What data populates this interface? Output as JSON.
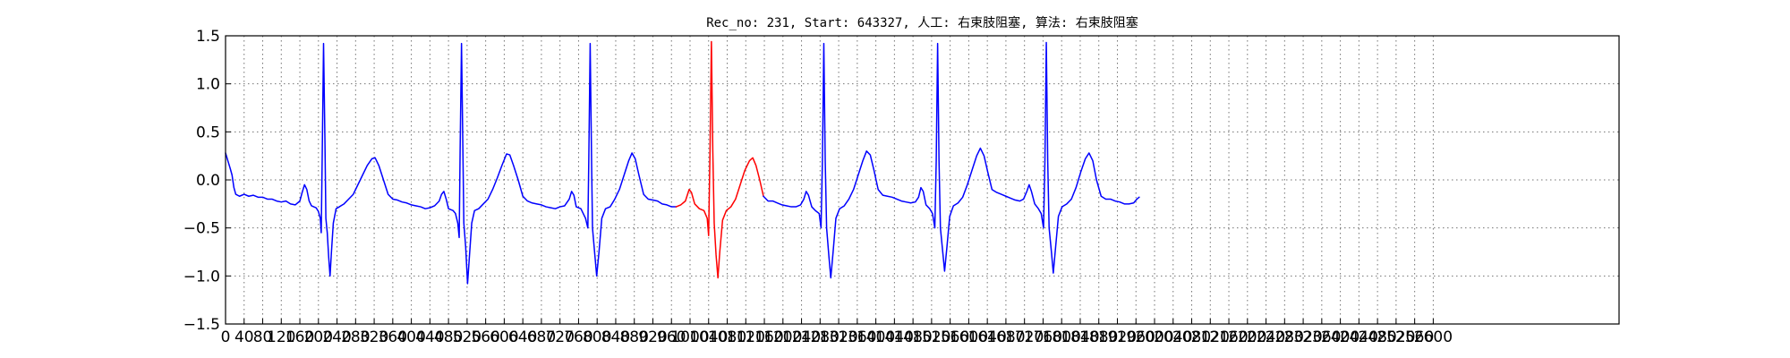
{
  "chart_data": {
    "type": "line",
    "title": "Rec_no: 231, Start: 643327, 人工: 右束肢阻塞, 算法: 右束肢阻塞",
    "xlabel": "",
    "ylabel": "",
    "xlim": [
      0,
      3000
    ],
    "ylim": [
      -1.5,
      1.5
    ],
    "grid": true,
    "x_ticks": [
      0,
      40,
      80,
      120,
      160,
      200,
      240,
      280,
      320,
      360,
      400,
      440,
      480,
      520,
      560,
      600,
      640,
      680,
      720,
      760,
      800,
      840,
      880,
      920,
      960,
      1000,
      1040,
      1080,
      1120,
      1160,
      1200,
      1240,
      1280,
      1320,
      1360,
      1400,
      1440,
      1480,
      1520,
      1560,
      1600,
      1640,
      1680,
      1720,
      1760,
      1800,
      1840,
      1880,
      1920,
      1960,
      2000,
      2040,
      2080,
      2120,
      2160,
      2200,
      2240,
      2280,
      2320,
      2360,
      2400,
      2440,
      2480,
      2520,
      2560,
      2600
    ],
    "x_tick_labels": [
      "0",
      "40",
      "80",
      "120",
      "160",
      "200",
      "240",
      "280",
      "320",
      "360",
      "400",
      "440",
      "480",
      "520",
      "560",
      "600",
      "640",
      "680",
      "720",
      "760",
      "800",
      "840",
      "880",
      "920",
      "960",
      "1000",
      "1040",
      "1080",
      "1120",
      "1160",
      "1200",
      "1240",
      "1280",
      "1320",
      "1360",
      "1400",
      "1440",
      "1480",
      "1520",
      "1560",
      "1600",
      "1640",
      "1680",
      "1720",
      "1760",
      "1800",
      "1840",
      "1880",
      "1920",
      "1960",
      "2000",
      "2040",
      "2080",
      "2120",
      "2160",
      "2200",
      "2240",
      "2280",
      "2320",
      "2360",
      "2400",
      "2440",
      "2480",
      "2520",
      "2560",
      "2600"
    ],
    "y_ticks": [
      1.5,
      1.0,
      0.5,
      0.0,
      -0.5,
      -1.0,
      -1.5
    ],
    "y_tick_labels": [
      "1.5",
      "1.0",
      "0.5",
      "0.0",
      "−0.5",
      "−1.0",
      "−1.5"
    ],
    "series": [
      {
        "color": "#0000ff",
        "points": [
          [
            0,
            0.28
          ],
          [
            5,
            0.2
          ],
          [
            10,
            0.12
          ],
          [
            14,
            0.05
          ],
          [
            18,
            -0.08
          ],
          [
            22,
            -0.15
          ],
          [
            30,
            -0.17
          ],
          [
            40,
            -0.15
          ],
          [
            50,
            -0.17
          ],
          [
            60,
            -0.16
          ],
          [
            70,
            -0.18
          ],
          [
            80,
            -0.18
          ],
          [
            90,
            -0.2
          ],
          [
            100,
            -0.2
          ],
          [
            110,
            -0.22
          ],
          [
            120,
            -0.23
          ],
          [
            130,
            -0.22
          ],
          [
            140,
            -0.25
          ],
          [
            150,
            -0.26
          ],
          [
            160,
            -0.22
          ],
          [
            165,
            -0.13
          ],
          [
            170,
            -0.05
          ],
          [
            175,
            -0.1
          ],
          [
            180,
            -0.22
          ],
          [
            185,
            -0.27
          ],
          [
            190,
            -0.28
          ],
          [
            195,
            -0.29
          ],
          [
            200,
            -0.33
          ],
          [
            204,
            -0.4
          ],
          [
            206,
            -0.55
          ],
          [
            208,
            0.2
          ],
          [
            211,
            1.42
          ],
          [
            214,
            0.4
          ],
          [
            216,
            -0.4
          ],
          [
            219,
            -0.55
          ],
          [
            222,
            -0.8
          ],
          [
            225,
            -1.0
          ],
          [
            228,
            -0.75
          ],
          [
            232,
            -0.45
          ],
          [
            238,
            -0.3
          ],
          [
            245,
            -0.28
          ],
          [
            255,
            -0.25
          ],
          [
            265,
            -0.2
          ],
          [
            275,
            -0.15
          ],
          [
            285,
            -0.05
          ],
          [
            295,
            0.05
          ],
          [
            305,
            0.15
          ],
          [
            315,
            0.22
          ],
          [
            322,
            0.23
          ],
          [
            330,
            0.15
          ],
          [
            340,
            0.0
          ],
          [
            350,
            -0.15
          ],
          [
            360,
            -0.2
          ],
          [
            370,
            -0.21
          ],
          [
            380,
            -0.23
          ],
          [
            390,
            -0.24
          ],
          [
            400,
            -0.26
          ],
          [
            410,
            -0.27
          ],
          [
            420,
            -0.28
          ],
          [
            430,
            -0.3
          ],
          [
            440,
            -0.29
          ],
          [
            450,
            -0.27
          ],
          [
            460,
            -0.22
          ],
          [
            465,
            -0.15
          ],
          [
            470,
            -0.12
          ],
          [
            475,
            -0.2
          ],
          [
            480,
            -0.3
          ],
          [
            490,
            -0.32
          ],
          [
            495,
            -0.35
          ],
          [
            500,
            -0.45
          ],
          [
            503,
            -0.6
          ],
          [
            505,
            0.3
          ],
          [
            508,
            1.42
          ],
          [
            511,
            0.3
          ],
          [
            513,
            -0.45
          ],
          [
            517,
            -0.7
          ],
          [
            521,
            -1.08
          ],
          [
            525,
            -0.8
          ],
          [
            530,
            -0.45
          ],
          [
            536,
            -0.32
          ],
          [
            545,
            -0.3
          ],
          [
            555,
            -0.25
          ],
          [
            565,
            -0.2
          ],
          [
            575,
            -0.1
          ],
          [
            585,
            0.02
          ],
          [
            595,
            0.15
          ],
          [
            605,
            0.27
          ],
          [
            612,
            0.26
          ],
          [
            620,
            0.15
          ],
          [
            630,
            0.0
          ],
          [
            640,
            -0.17
          ],
          [
            650,
            -0.22
          ],
          [
            660,
            -0.24
          ],
          [
            670,
            -0.25
          ],
          [
            680,
            -0.26
          ],
          [
            690,
            -0.28
          ],
          [
            700,
            -0.29
          ],
          [
            710,
            -0.3
          ],
          [
            720,
            -0.28
          ],
          [
            730,
            -0.27
          ],
          [
            740,
            -0.2
          ],
          [
            745,
            -0.12
          ],
          [
            750,
            -0.16
          ],
          [
            755,
            -0.28
          ],
          [
            765,
            -0.3
          ],
          [
            775,
            -0.4
          ],
          [
            780,
            -0.5
          ],
          [
            782,
            0.2
          ],
          [
            785,
            1.42
          ],
          [
            788,
            0.2
          ],
          [
            790,
            -0.5
          ],
          [
            795,
            -0.78
          ],
          [
            799,
            -1.0
          ],
          [
            804,
            -0.75
          ],
          [
            810,
            -0.4
          ],
          [
            818,
            -0.3
          ],
          [
            828,
            -0.28
          ],
          [
            838,
            -0.2
          ],
          [
            848,
            -0.1
          ],
          [
            858,
            0.05
          ],
          [
            868,
            0.2
          ],
          [
            875,
            0.28
          ],
          [
            882,
            0.22
          ],
          [
            890,
            0.05
          ],
          [
            900,
            -0.15
          ],
          [
            910,
            -0.2
          ],
          [
            920,
            -0.21
          ],
          [
            930,
            -0.22
          ],
          [
            940,
            -0.25
          ],
          [
            950,
            -0.26
          ],
          [
            960,
            -0.28
          ],
          [
            970,
            -0.28
          ]
        ]
      },
      {
        "color": "#ff0000",
        "points": [
          [
            970,
            -0.28
          ],
          [
            980,
            -0.26
          ],
          [
            990,
            -0.22
          ],
          [
            998,
            -0.1
          ],
          [
            1003,
            -0.13
          ],
          [
            1010,
            -0.25
          ],
          [
            1020,
            -0.3
          ],
          [
            1030,
            -0.32
          ],
          [
            1037,
            -0.4
          ],
          [
            1040,
            -0.58
          ],
          [
            1043,
            0.3
          ],
          [
            1046,
            1.44
          ],
          [
            1049,
            0.3
          ],
          [
            1052,
            -0.45
          ],
          [
            1056,
            -0.78
          ],
          [
            1060,
            -1.02
          ],
          [
            1064,
            -0.75
          ],
          [
            1070,
            -0.42
          ],
          [
            1078,
            -0.32
          ],
          [
            1088,
            -0.28
          ],
          [
            1098,
            -0.2
          ],
          [
            1108,
            -0.05
          ],
          [
            1118,
            0.1
          ],
          [
            1128,
            0.2
          ],
          [
            1135,
            0.23
          ],
          [
            1142,
            0.15
          ],
          [
            1150,
            0.0
          ],
          [
            1158,
            -0.17
          ]
        ]
      },
      {
        "color": "#0000ff",
        "points": [
          [
            1158,
            -0.17
          ],
          [
            1168,
            -0.22
          ],
          [
            1178,
            -0.22
          ],
          [
            1188,
            -0.24
          ],
          [
            1198,
            -0.26
          ],
          [
            1208,
            -0.27
          ],
          [
            1218,
            -0.28
          ],
          [
            1228,
            -0.28
          ],
          [
            1238,
            -0.26
          ],
          [
            1245,
            -0.2
          ],
          [
            1250,
            -0.12
          ],
          [
            1255,
            -0.16
          ],
          [
            1262,
            -0.28
          ],
          [
            1270,
            -0.32
          ],
          [
            1278,
            -0.35
          ],
          [
            1282,
            -0.5
          ],
          [
            1285,
            0.2
          ],
          [
            1288,
            1.42
          ],
          [
            1291,
            0.2
          ],
          [
            1294,
            -0.5
          ],
          [
            1299,
            -0.8
          ],
          [
            1303,
            -1.02
          ],
          [
            1308,
            -0.75
          ],
          [
            1314,
            -0.4
          ],
          [
            1322,
            -0.3
          ],
          [
            1332,
            -0.27
          ],
          [
            1342,
            -0.2
          ],
          [
            1352,
            -0.1
          ],
          [
            1362,
            0.05
          ],
          [
            1372,
            0.2
          ],
          [
            1380,
            0.3
          ],
          [
            1388,
            0.26
          ],
          [
            1396,
            0.1
          ],
          [
            1405,
            -0.1
          ],
          [
            1415,
            -0.16
          ],
          [
            1425,
            -0.17
          ],
          [
            1435,
            -0.18
          ],
          [
            1445,
            -0.2
          ],
          [
            1455,
            -0.22
          ],
          [
            1465,
            -0.23
          ],
          [
            1475,
            -0.24
          ],
          [
            1485,
            -0.23
          ],
          [
            1492,
            -0.18
          ],
          [
            1497,
            -0.08
          ],
          [
            1502,
            -0.12
          ],
          [
            1508,
            -0.26
          ],
          [
            1516,
            -0.3
          ],
          [
            1522,
            -0.35
          ],
          [
            1527,
            -0.5
          ],
          [
            1530,
            0.2
          ],
          [
            1533,
            1.42
          ],
          [
            1536,
            0.2
          ],
          [
            1539,
            -0.5
          ],
          [
            1544,
            -0.75
          ],
          [
            1548,
            -0.95
          ],
          [
            1553,
            -0.7
          ],
          [
            1559,
            -0.38
          ],
          [
            1567,
            -0.27
          ],
          [
            1577,
            -0.24
          ],
          [
            1587,
            -0.18
          ],
          [
            1597,
            -0.05
          ],
          [
            1607,
            0.1
          ],
          [
            1617,
            0.25
          ],
          [
            1625,
            0.33
          ],
          [
            1633,
            0.25
          ],
          [
            1641,
            0.08
          ],
          [
            1650,
            -0.1
          ],
          [
            1660,
            -0.13
          ],
          [
            1670,
            -0.15
          ],
          [
            1680,
            -0.17
          ],
          [
            1690,
            -0.19
          ],
          [
            1700,
            -0.21
          ],
          [
            1710,
            -0.22
          ],
          [
            1718,
            -0.2
          ],
          [
            1725,
            -0.12
          ],
          [
            1730,
            -0.05
          ],
          [
            1735,
            -0.12
          ],
          [
            1742,
            -0.25
          ],
          [
            1750,
            -0.3
          ],
          [
            1756,
            -0.35
          ],
          [
            1761,
            -0.5
          ],
          [
            1764,
            0.2
          ],
          [
            1767,
            1.43
          ],
          [
            1770,
            0.2
          ],
          [
            1773,
            -0.5
          ],
          [
            1778,
            -0.75
          ],
          [
            1782,
            -0.97
          ],
          [
            1787,
            -0.7
          ],
          [
            1793,
            -0.38
          ],
          [
            1801,
            -0.28
          ],
          [
            1811,
            -0.25
          ],
          [
            1821,
            -0.2
          ],
          [
            1831,
            -0.08
          ],
          [
            1841,
            0.08
          ],
          [
            1851,
            0.22
          ],
          [
            1859,
            0.28
          ],
          [
            1867,
            0.2
          ],
          [
            1875,
            0.0
          ],
          [
            1885,
            -0.17
          ],
          [
            1895,
            -0.2
          ],
          [
            1905,
            -0.2
          ],
          [
            1915,
            -0.22
          ],
          [
            1925,
            -0.23
          ],
          [
            1935,
            -0.25
          ],
          [
            1945,
            -0.25
          ],
          [
            1955,
            -0.24
          ],
          [
            1962,
            -0.2
          ],
          [
            1967,
            -0.18
          ]
        ]
      }
    ]
  }
}
